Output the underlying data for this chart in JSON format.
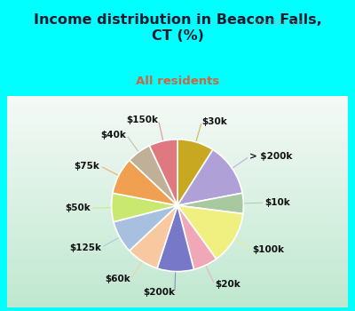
{
  "title": "Income distribution in Beacon Falls,\nCT (%)",
  "subtitle": "All residents",
  "title_color": "#1a1a2e",
  "subtitle_color": "#cc6644",
  "bg_cyan": "#00ffff",
  "bg_chart": "#d8ede0",
  "labels": [
    "$30k",
    "> $200k",
    "$10k",
    "$100k",
    "$20k",
    "$200k",
    "$60k",
    "$125k",
    "$50k",
    "$75k",
    "$40k",
    "$150k"
  ],
  "values": [
    9,
    13,
    5,
    13,
    6,
    9,
    8,
    8,
    7,
    9,
    6,
    7
  ],
  "colors": [
    "#c8a820",
    "#b0a0d8",
    "#a8c8a0",
    "#f0f080",
    "#f0a8b8",
    "#7878c8",
    "#f8c8a0",
    "#a8c0e0",
    "#c8e870",
    "#f0a050",
    "#c0b098",
    "#e07880"
  ],
  "wedge_edge_color": "#ffffff",
  "label_font_size": 7.5,
  "watermark": "City-Data.com"
}
